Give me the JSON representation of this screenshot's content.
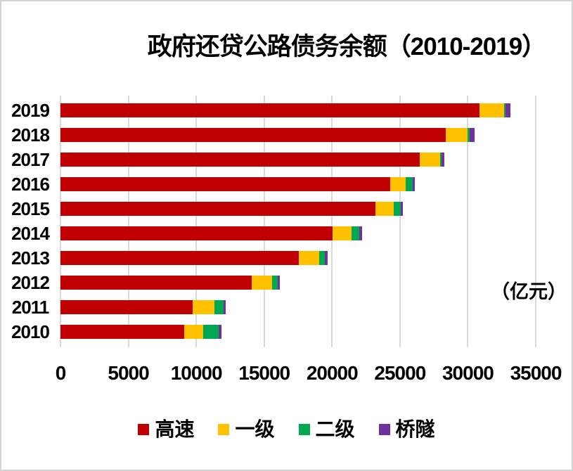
{
  "window": {
    "background": "#ffffff",
    "border_color": "#d4d4d4"
  },
  "title": "政府还贷公路债务余额（2010-2019）",
  "unit_label": "（亿元）",
  "chart_data": {
    "type": "bar",
    "orientation": "horizontal",
    "stacked": true,
    "title": "政府还贷公路债务余额（2010-2019）",
    "xlabel": "",
    "ylabel": "",
    "unit": "（亿元）",
    "row_order": "top-to-bottom",
    "categories": [
      "2019",
      "2018",
      "2017",
      "2016",
      "2015",
      "2014",
      "2013",
      "2012",
      "2011",
      "2010"
    ],
    "series": [
      {
        "name": "高速",
        "color": "#c00000",
        "values": [
          30850,
          28380,
          26460,
          24290,
          23200,
          20050,
          17540,
          14060,
          9720,
          9110
        ]
      },
      {
        "name": "一级",
        "color": "#ffc000",
        "values": [
          1810,
          1600,
          1480,
          1150,
          1350,
          1380,
          1520,
          1500,
          1600,
          1390
        ]
      },
      {
        "name": "二级",
        "color": "#00a951",
        "values": [
          120,
          140,
          100,
          500,
          520,
          600,
          430,
          430,
          680,
          1160
        ]
      },
      {
        "name": "桥隧",
        "color": "#7030a0",
        "values": [
          350,
          380,
          230,
          180,
          140,
          170,
          210,
          140,
          190,
          220
        ]
      }
    ],
    "totals": [
      33130,
      30500,
      28270,
      26120,
      25210,
      22200,
      19700,
      16130,
      12190,
      11880
    ],
    "x_ticks": [
      0,
      5000,
      10000,
      15000,
      20000,
      25000,
      30000,
      35000
    ],
    "xlim": [
      0,
      35000
    ],
    "grid": true,
    "gridline_color": "#d9d9d9",
    "legend_position": "bottom"
  }
}
